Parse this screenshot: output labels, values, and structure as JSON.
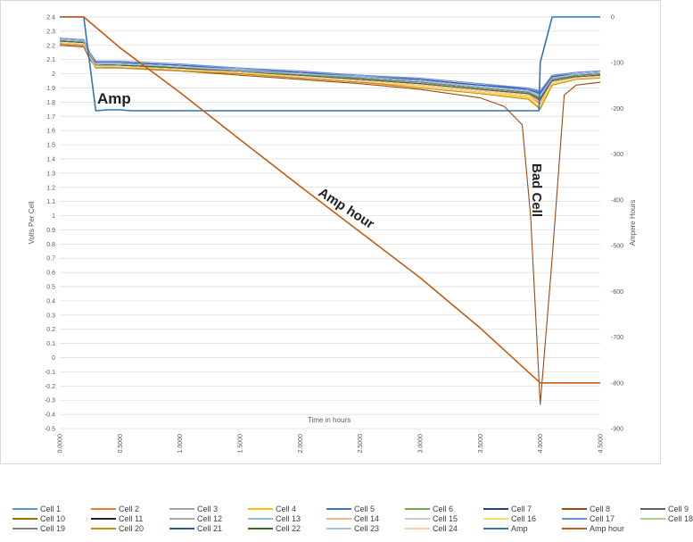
{
  "chart_data": {
    "type": "line",
    "xlabel": "Time in hours",
    "ylabel": "Volts Per Cell",
    "y2label": "Ampere Hours",
    "xlim": [
      0,
      4.5
    ],
    "ylim": [
      -0.5,
      2.4
    ],
    "y2lim": [
      -900,
      0
    ],
    "x_ticks": [
      "0.0000",
      "0.5000",
      "1.0000",
      "1.5000",
      "2.0000",
      "2.5000",
      "3.0000",
      "3.5000",
      "4.0000",
      "4.5000"
    ],
    "y_ticks": [
      "-0.5",
      "-0.4",
      "-0.3",
      "-0.2",
      "-0.1",
      "0",
      "0.1",
      "0.2",
      "0.3",
      "0.4",
      "0.5",
      "0.6",
      "0.7",
      "0.8",
      "0.9",
      "1",
      "1.1",
      "1.2",
      "1.3",
      "1.4",
      "1.5",
      "1.6",
      "1.7",
      "1.8",
      "1.9",
      "2",
      "2.1",
      "2.2",
      "2.3",
      "2.4"
    ],
    "y2_ticks": [
      "-900",
      "-800",
      "-700",
      "-600",
      "-500",
      "-400",
      "-300",
      "-200",
      "-100",
      "0"
    ],
    "grid": "horizontal",
    "legend_position": "bottom",
    "annotations": [
      "Amp",
      "Amp hour",
      "Bad Cell"
    ],
    "series": [
      {
        "name": "Cell 1",
        "color": "#5b9bd5",
        "axis": "left",
        "x": [
          0,
          0.2,
          0.25,
          0.3,
          0.5,
          1,
          1.5,
          2,
          2.5,
          3,
          3.5,
          3.9,
          4.0,
          4.1,
          4.3,
          4.5
        ],
        "y": [
          2.24,
          2.23,
          2.14,
          2.07,
          2.07,
          2.05,
          2.03,
          2.0,
          1.98,
          1.95,
          1.91,
          1.88,
          1.85,
          1.97,
          2.0,
          2.01
        ]
      },
      {
        "name": "Cell 2",
        "color": "#ed7d31",
        "axis": "left",
        "x": [
          0,
          0.2,
          0.25,
          0.3,
          0.5,
          1,
          1.5,
          2,
          2.5,
          3,
          3.5,
          3.9,
          4.0,
          4.1,
          4.3,
          4.5
        ],
        "y": [
          2.21,
          2.2,
          2.11,
          2.05,
          2.05,
          2.02,
          2.0,
          1.97,
          1.94,
          1.91,
          1.87,
          1.84,
          1.79,
          1.94,
          1.97,
          1.98
        ]
      },
      {
        "name": "Cell 3",
        "color": "#a5a5a5",
        "axis": "left",
        "x": [
          0,
          0.2,
          0.25,
          0.3,
          0.5,
          1,
          1.5,
          2,
          2.5,
          3,
          3.5,
          3.9,
          4.0,
          4.1,
          4.3,
          4.5
        ],
        "y": [
          2.24,
          2.23,
          2.14,
          2.08,
          2.08,
          2.06,
          2.03,
          2.01,
          1.98,
          1.95,
          1.92,
          1.89,
          1.86,
          1.98,
          2.0,
          2.01
        ]
      },
      {
        "name": "Cell 4",
        "color": "#ffc000",
        "axis": "left",
        "x": [
          0,
          0.2,
          0.25,
          0.3,
          0.5,
          1,
          1.5,
          2,
          2.5,
          3,
          3.5,
          3.9,
          4.0,
          4.1,
          4.3,
          4.5
        ],
        "y": [
          2.22,
          2.21,
          2.12,
          2.05,
          2.05,
          2.03,
          2.0,
          1.98,
          1.95,
          1.91,
          1.87,
          1.83,
          1.76,
          1.93,
          1.97,
          1.98
        ]
      },
      {
        "name": "Cell 5",
        "color": "#4472c4",
        "axis": "left",
        "x": [
          0,
          0.2,
          0.25,
          0.3,
          0.5,
          1,
          1.5,
          2,
          2.5,
          3,
          3.5,
          3.9,
          4.0,
          4.1,
          4.3,
          4.5
        ],
        "y": [
          2.25,
          2.24,
          2.15,
          2.08,
          2.08,
          2.06,
          2.04,
          2.01,
          1.99,
          1.96,
          1.92,
          1.9,
          1.87,
          1.98,
          2.01,
          2.02
        ]
      },
      {
        "name": "Cell 6",
        "color": "#70ad47",
        "axis": "left",
        "x": [
          0,
          0.2,
          0.25,
          0.3,
          0.5,
          1,
          1.5,
          2,
          2.5,
          3,
          3.5,
          3.9,
          4.0,
          4.1,
          4.3,
          4.5
        ],
        "y": [
          2.23,
          2.22,
          2.13,
          2.07,
          2.07,
          2.04,
          2.02,
          2.0,
          1.97,
          1.94,
          1.9,
          1.87,
          1.83,
          1.96,
          1.99,
          2.0
        ]
      },
      {
        "name": "Cell 7",
        "color": "#264478",
        "axis": "left",
        "x": [
          0,
          0.2,
          0.25,
          0.3,
          0.5,
          1,
          1.5,
          2,
          2.5,
          3,
          3.5,
          3.9,
          4.0,
          4.1,
          4.3,
          4.5
        ],
        "y": [
          2.24,
          2.23,
          2.14,
          2.07,
          2.07,
          2.05,
          2.03,
          2.0,
          1.98,
          1.95,
          1.91,
          1.88,
          1.85,
          1.97,
          2.0,
          2.01
        ]
      },
      {
        "name": "Cell 8",
        "color": "#9e480e",
        "axis": "left",
        "x": [
          0,
          0.2,
          0.25,
          0.3,
          0.5,
          1,
          1.5,
          2,
          2.5,
          3,
          3.5,
          3.7,
          3.85,
          3.92,
          4.0,
          4.1,
          4.2,
          4.3,
          4.5
        ],
        "y": [
          2.2,
          2.19,
          2.1,
          2.05,
          2.04,
          2.02,
          1.99,
          1.96,
          1.93,
          1.89,
          1.83,
          1.77,
          1.64,
          1.0,
          -0.33,
          0.7,
          1.85,
          1.92,
          1.94
        ]
      },
      {
        "name": "Cell 9",
        "color": "#636363",
        "axis": "left",
        "x": [
          0,
          0.2,
          0.25,
          0.3,
          0.5,
          1,
          1.5,
          2,
          2.5,
          3,
          3.5,
          3.9,
          4.0,
          4.1,
          4.3,
          4.5
        ],
        "y": [
          2.23,
          2.22,
          2.13,
          2.06,
          2.06,
          2.04,
          2.02,
          1.99,
          1.96,
          1.93,
          1.89,
          1.86,
          1.82,
          1.95,
          1.98,
          1.99
        ]
      },
      {
        "name": "Cell 10",
        "color": "#997300",
        "axis": "left",
        "x": [
          0,
          0.2,
          0.25,
          0.3,
          0.5,
          1,
          1.5,
          2,
          2.5,
          3,
          3.5,
          3.9,
          4.0,
          4.1,
          4.3,
          4.5
        ],
        "y": [
          2.22,
          2.21,
          2.12,
          2.05,
          2.05,
          2.03,
          2.01,
          1.98,
          1.95,
          1.92,
          1.88,
          1.85,
          1.81,
          1.95,
          1.98,
          1.99
        ]
      },
      {
        "name": "Cell 11",
        "color": "#1f1f3a",
        "axis": "left",
        "x": [
          0,
          0.2,
          0.25,
          0.3,
          0.5,
          1,
          1.5,
          2,
          2.5,
          3,
          3.5,
          3.9,
          4.0,
          4.1,
          4.3,
          4.5
        ],
        "y": [
          2.23,
          2.22,
          2.13,
          2.06,
          2.06,
          2.04,
          2.02,
          1.99,
          1.97,
          1.94,
          1.9,
          1.87,
          1.83,
          1.96,
          1.99,
          2.0
        ]
      },
      {
        "name": "Cell 12",
        "color": "#a9a9a9",
        "axis": "left",
        "x": [
          0,
          0.2,
          0.25,
          0.3,
          0.5,
          1,
          1.5,
          2,
          2.5,
          3,
          3.5,
          3.9,
          4.0,
          4.1,
          4.3,
          4.5
        ],
        "y": [
          2.24,
          2.23,
          2.14,
          2.07,
          2.07,
          2.05,
          2.03,
          2.0,
          1.98,
          1.95,
          1.91,
          1.88,
          1.84,
          1.97,
          2.0,
          2.01
        ]
      },
      {
        "name": "Cell 13",
        "color": "#8fbce6",
        "axis": "left",
        "x": [
          0,
          0.2,
          0.25,
          0.3,
          0.5,
          1,
          1.5,
          2,
          2.5,
          3,
          3.5,
          3.9,
          4.0,
          4.1,
          4.3,
          4.5
        ],
        "y": [
          2.25,
          2.24,
          2.15,
          2.08,
          2.08,
          2.06,
          2.04,
          2.01,
          1.99,
          1.96,
          1.92,
          1.89,
          1.86,
          1.98,
          2.01,
          2.02
        ]
      },
      {
        "name": "Cell 14",
        "color": "#f4b183",
        "axis": "left",
        "x": [
          0,
          0.2,
          0.25,
          0.3,
          0.5,
          1,
          1.5,
          2,
          2.5,
          3,
          3.5,
          3.9,
          4.0,
          4.1,
          4.3,
          4.5
        ],
        "y": [
          2.22,
          2.21,
          2.12,
          2.05,
          2.05,
          2.03,
          2.01,
          1.98,
          1.95,
          1.92,
          1.88,
          1.85,
          1.8,
          1.94,
          1.97,
          1.98
        ]
      },
      {
        "name": "Cell 15",
        "color": "#c9c9c9",
        "axis": "left",
        "x": [
          0,
          0.2,
          0.25,
          0.3,
          0.5,
          1,
          1.5,
          2,
          2.5,
          3,
          3.5,
          3.9,
          4.0,
          4.1,
          4.3,
          4.5
        ],
        "y": [
          2.23,
          2.22,
          2.13,
          2.07,
          2.07,
          2.05,
          2.02,
          2.0,
          1.97,
          1.94,
          1.9,
          1.87,
          1.84,
          1.97,
          1.99,
          2.0
        ]
      },
      {
        "name": "Cell 16",
        "color": "#ffd966",
        "axis": "left",
        "x": [
          0,
          0.2,
          0.25,
          0.3,
          0.5,
          1,
          1.5,
          2,
          2.5,
          3,
          3.5,
          3.9,
          4.0,
          4.1,
          4.3,
          4.5
        ],
        "y": [
          2.22,
          2.21,
          2.12,
          2.05,
          2.05,
          2.03,
          2.0,
          1.98,
          1.95,
          1.91,
          1.87,
          1.84,
          1.78,
          1.93,
          1.97,
          1.98
        ]
      },
      {
        "name": "Cell 17",
        "color": "#6f8fd8",
        "axis": "left",
        "x": [
          0,
          0.2,
          0.25,
          0.3,
          0.5,
          1,
          1.5,
          2,
          2.5,
          3,
          3.5,
          3.9,
          4.0,
          4.1,
          4.3,
          4.5
        ],
        "y": [
          2.25,
          2.24,
          2.15,
          2.09,
          2.09,
          2.07,
          2.04,
          2.02,
          1.99,
          1.97,
          1.93,
          1.9,
          1.88,
          1.99,
          2.01,
          2.02
        ]
      },
      {
        "name": "Cell 18",
        "color": "#a9d18e",
        "axis": "left",
        "x": [
          0,
          0.2,
          0.25,
          0.3,
          0.5,
          1,
          1.5,
          2,
          2.5,
          3,
          3.5,
          3.9,
          4.0,
          4.1,
          4.3,
          4.5
        ],
        "y": [
          2.23,
          2.22,
          2.13,
          2.06,
          2.06,
          2.04,
          2.02,
          1.99,
          1.97,
          1.93,
          1.89,
          1.86,
          1.82,
          1.96,
          1.99,
          2.0
        ]
      },
      {
        "name": "Cell 19",
        "color": "#7f7f7f",
        "axis": "left",
        "x": [
          0,
          0.2,
          0.25,
          0.3,
          0.5,
          1,
          1.5,
          2,
          2.5,
          3,
          3.5,
          3.9,
          4.0,
          4.1,
          4.3,
          4.5
        ],
        "y": [
          2.23,
          2.22,
          2.13,
          2.07,
          2.06,
          2.04,
          2.02,
          2.0,
          1.97,
          1.94,
          1.9,
          1.87,
          1.83,
          1.96,
          1.99,
          2.0
        ]
      },
      {
        "name": "Cell 20",
        "color": "#c58f00",
        "axis": "left",
        "x": [
          0,
          0.2,
          0.25,
          0.3,
          0.5,
          1,
          1.5,
          2,
          2.5,
          3,
          3.5,
          3.9,
          4.0,
          4.1,
          4.3,
          4.5
        ],
        "y": [
          2.21,
          2.2,
          2.11,
          2.04,
          2.04,
          2.02,
          2.0,
          1.97,
          1.94,
          1.9,
          1.86,
          1.82,
          1.75,
          1.92,
          1.96,
          1.97
        ]
      },
      {
        "name": "Cell 21",
        "color": "#2f55a4",
        "axis": "left",
        "x": [
          0,
          0.2,
          0.25,
          0.3,
          0.5,
          1,
          1.5,
          2,
          2.5,
          3,
          3.5,
          3.9,
          4.0,
          4.1,
          4.3,
          4.5
        ],
        "y": [
          2.24,
          2.23,
          2.14,
          2.08,
          2.08,
          2.06,
          2.03,
          2.01,
          1.98,
          1.96,
          1.92,
          1.89,
          1.86,
          1.98,
          2.0,
          2.01
        ]
      },
      {
        "name": "Cell 22",
        "color": "#43682b",
        "axis": "left",
        "x": [
          0,
          0.2,
          0.25,
          0.3,
          0.5,
          1,
          1.5,
          2,
          2.5,
          3,
          3.5,
          3.9,
          4.0,
          4.1,
          4.3,
          4.5
        ],
        "y": [
          2.23,
          2.22,
          2.13,
          2.06,
          2.06,
          2.04,
          2.01,
          1.99,
          1.96,
          1.93,
          1.89,
          1.86,
          1.82,
          1.95,
          1.98,
          1.99
        ]
      },
      {
        "name": "Cell 23",
        "color": "#9dc3e6",
        "axis": "left",
        "x": [
          0,
          0.2,
          0.25,
          0.3,
          0.5,
          1,
          1.5,
          2,
          2.5,
          3,
          3.5,
          3.9,
          4.0,
          4.1,
          4.3,
          4.5
        ],
        "y": [
          2.24,
          2.23,
          2.14,
          2.07,
          2.07,
          2.05,
          2.03,
          2.0,
          1.98,
          1.95,
          1.91,
          1.88,
          1.85,
          1.97,
          2.0,
          2.01
        ]
      },
      {
        "name": "Cell 24",
        "color": "#f8cbad",
        "axis": "left",
        "x": [
          0,
          0.2,
          0.25,
          0.3,
          0.5,
          1,
          1.5,
          2,
          2.5,
          3,
          3.5,
          3.9,
          4.0,
          4.1,
          4.3,
          4.5
        ],
        "y": [
          2.22,
          2.21,
          2.12,
          2.05,
          2.05,
          2.03,
          2.01,
          1.98,
          1.95,
          1.92,
          1.88,
          1.85,
          1.8,
          1.94,
          1.97,
          1.98
        ]
      },
      {
        "name": "Amp",
        "color": "#2e75b6",
        "axis": "right",
        "x": [
          0,
          0.2,
          0.3,
          0.4,
          0.5,
          0.6,
          1,
          2,
          3,
          3.99,
          4.0,
          4.1,
          4.2,
          4.5
        ],
        "y": [
          0,
          0,
          -205,
          -203,
          -203,
          -205,
          -205,
          -205,
          -205,
          -205,
          -100,
          0,
          0,
          0
        ]
      },
      {
        "name": "Amp hour",
        "color": "#c55a11",
        "axis": "right",
        "x": [
          0,
          0.2,
          0.5,
          1.0,
          1.5,
          2.0,
          2.5,
          3.0,
          3.5,
          4.0,
          4.5
        ],
        "y": [
          0,
          0,
          -67,
          -165,
          -268,
          -370,
          -470,
          -570,
          -680,
          -800,
          -800
        ]
      }
    ]
  }
}
